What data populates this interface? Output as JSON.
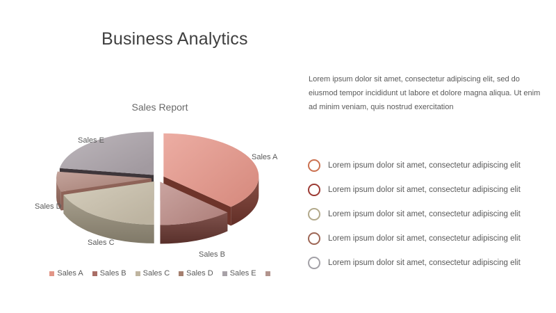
{
  "slide_title": "Business Analytics",
  "chart_data": {
    "type": "pie",
    "style": "3d-exploded",
    "title": "Sales Report",
    "labels": [
      "Sales A",
      "Sales B",
      "Sales C",
      "Sales D",
      "Sales E"
    ],
    "values": [
      37.5,
      12.5,
      20,
      7.5,
      22.5
    ],
    "values_unit": "percent-estimated",
    "colors_top": [
      "#e69689",
      "#bb8a85",
      "#c9c0ab",
      "#b2897f",
      "#aca4aa"
    ],
    "colors_side": [
      "#78382e",
      "#6d3a34",
      "#9c937f",
      "#9a6c60",
      "#433b3f"
    ],
    "legend_position": "bottom",
    "legend": [
      {
        "label": "Sales A",
        "color": "#e29687"
      },
      {
        "label": "Sales B",
        "color": "#a96e66"
      },
      {
        "label": "Sales C",
        "color": "#bfb5a0"
      },
      {
        "label": "Sales D",
        "color": "#a5806f"
      },
      {
        "label": "Sales E",
        "color": "#a8a2a8"
      },
      {
        "label": "",
        "color": "#b2948d"
      }
    ]
  },
  "paragraph": "Lorem ipsum dolor sit amet, consectetur adipiscing elit, sed do eiusmod tempor incididunt ut labore et dolore magna aliqua. Ut enim ad minim veniam, quis nostrud exercitation",
  "bullets": [
    {
      "text": "Lorem ipsum dolor sit amet, consectetur adipiscing elit",
      "ring_color": "#cb7150"
    },
    {
      "text": "Lorem ipsum dolor sit amet, consectetur adipiscing elit",
      "ring_color": "#9c3a33"
    },
    {
      "text": "Lorem ipsum dolor sit amet, consectetur adipiscing elit",
      "ring_color": "#b2a98b"
    },
    {
      "text": "Lorem ipsum dolor sit amet, consectetur adipiscing elit",
      "ring_color": "#9d6655"
    },
    {
      "text": "Lorem ipsum dolor sit amet, consectetur adipiscing elit",
      "ring_color": "#a3a1a7"
    }
  ]
}
